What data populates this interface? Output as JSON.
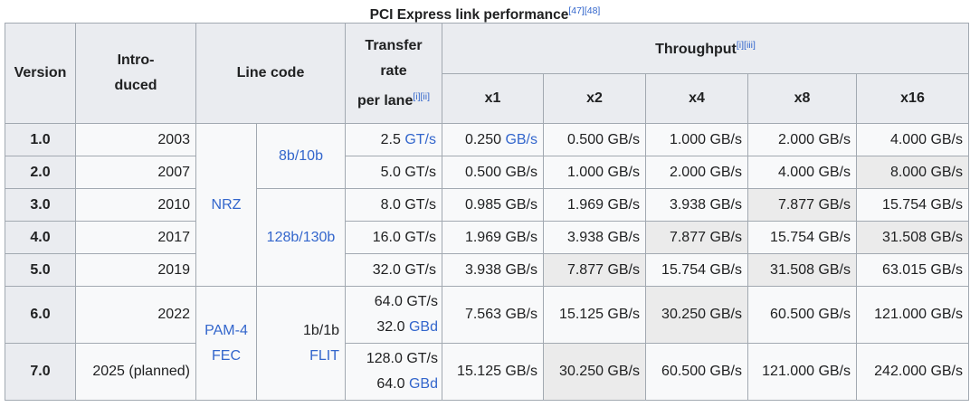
{
  "caption": {
    "title": "PCI Express link performance",
    "refs": "[47][48]"
  },
  "header": {
    "version": "Version",
    "introduced_1": "Intro-",
    "introduced_2": "duced",
    "line_code": "Line code",
    "rate_1": "Transfer",
    "rate_2": "rate",
    "rate_3": "per lane",
    "rate_refs": "[i][ii]",
    "throughput": "Throughput",
    "throughput_refs": "[i][iii]",
    "lanes": [
      "x1",
      "x2",
      "x4",
      "x8",
      "x16"
    ]
  },
  "line_codes": {
    "nrz": "NRZ",
    "c8b10b": "8b/10b",
    "c128b130b": "128b/130b",
    "pam4": "PAM-4",
    "fec": "FEC",
    "c1b1b": "1b/1b",
    "flit": "FLIT"
  },
  "rows": [
    {
      "version": "1.0",
      "introduced": "2003",
      "rate": "2.5 GT/s",
      "rate_unit": "GT/s",
      "rate_num": "2.5 ",
      "x1": "0.250 GB/s",
      "x1_num": "0.250 ",
      "x1_unit": "GB/s",
      "x2": "0.500 GB/s",
      "x4": "1.000 GB/s",
      "x8": "2.000 GB/s",
      "x16": "4.000 GB/s"
    },
    {
      "version": "2.0",
      "introduced": "2007",
      "rate": "5.0 GT/s",
      "x1": "0.500 GB/s",
      "x2": "1.000 GB/s",
      "x4": "2.000 GB/s",
      "x8": "4.000 GB/s",
      "x16": "8.000 GB/s"
    },
    {
      "version": "3.0",
      "introduced": "2010",
      "rate": "8.0 GT/s",
      "x1": "0.985 GB/s",
      "x2": "1.969 GB/s",
      "x4": "3.938 GB/s",
      "x8": "7.877 GB/s",
      "x16": "15.754 GB/s"
    },
    {
      "version": "4.0",
      "introduced": "2017",
      "rate": "16.0 GT/s",
      "x1": "1.969 GB/s",
      "x2": "3.938 GB/s",
      "x4": "7.877 GB/s",
      "x8": "15.754 GB/s",
      "x16": "31.508 GB/s"
    },
    {
      "version": "5.0",
      "introduced": "2019",
      "rate": "32.0 GT/s",
      "x1": "3.938 GB/s",
      "x2": "7.877 GB/s",
      "x4": "15.754 GB/s",
      "x8": "31.508 GB/s",
      "x16": "63.015 GB/s"
    },
    {
      "version": "6.0",
      "introduced": "2022",
      "rate_a": "64.0 GT/s",
      "rate_b_num": "32.0 ",
      "rate_b_link1": "GB",
      "rate_b_link2": "d",
      "x1": "7.563 GB/s",
      "x2": "15.125 GB/s",
      "x4": "30.250 GB/s",
      "x8": "60.500 GB/s",
      "x16": "121.000 GB/s"
    },
    {
      "version": "7.0",
      "introduced": "2025 (planned)",
      "rate_a": "128.0 GT/s",
      "rate_b_num": "64.0 ",
      "rate_b_link1": "GB",
      "rate_b_link2": "d",
      "x1": "15.125 GB/s",
      "x2": "30.250 GB/s",
      "x4": "60.500 GB/s",
      "x8": "121.000 GB/s",
      "x16": "242.000 GB/s"
    }
  ],
  "colors": {
    "header_bg": "#eaecf0",
    "cell_bg": "#f8f9fa",
    "shade_bg": "#ebebeb",
    "link": "#3366cc",
    "border": "#a2a9b1"
  }
}
